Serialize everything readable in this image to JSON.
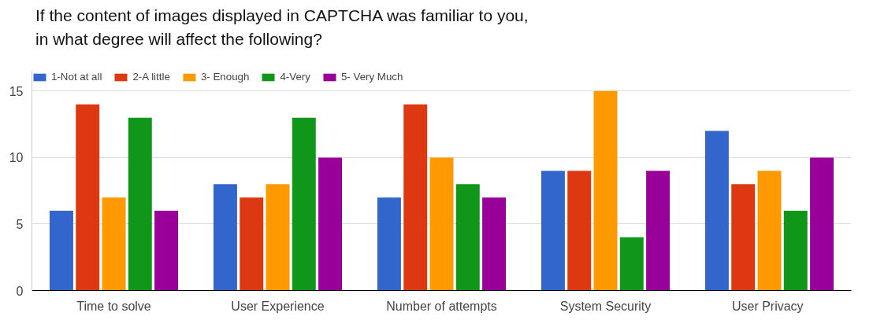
{
  "chart_data": {
    "type": "bar",
    "title": "If the content of images displayed in CAPTCHA was familiar to you,\nin what degree will affect the following?",
    "categories": [
      "Time to solve",
      "User Experience",
      "Number of attempts",
      "System Security",
      "User  Privacy"
    ],
    "series": [
      {
        "name": "1-Not at all",
        "color": "#3366cc",
        "values": [
          6,
          8,
          7,
          9,
          12
        ]
      },
      {
        "name": "2-A little",
        "color": "#dc3912",
        "values": [
          14,
          7,
          14,
          9,
          8
        ]
      },
      {
        "name": "3- Enough",
        "color": "#ff9900",
        "values": [
          7,
          8,
          10,
          15,
          9
        ]
      },
      {
        "name": "4-Very",
        "color": "#109618",
        "values": [
          13,
          13,
          8,
          4,
          6
        ]
      },
      {
        "name": "5- Very Much",
        "color": "#990099",
        "values": [
          6,
          10,
          7,
          9,
          10
        ]
      }
    ],
    "ylim": [
      0,
      16.5
    ],
    "yticks": [
      0,
      5,
      10,
      15
    ],
    "grid": "y",
    "legend": "top left"
  }
}
